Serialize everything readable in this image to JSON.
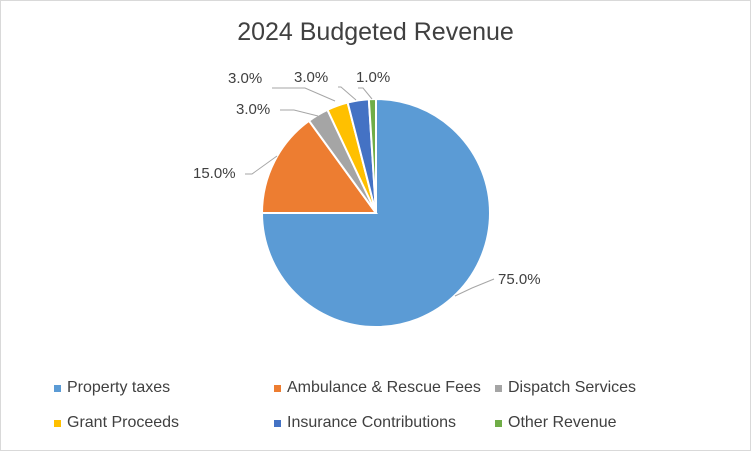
{
  "chart_data": {
    "type": "pie",
    "title": "2024 Budgeted Revenue",
    "categories": [
      "Property taxes",
      "Ambulance & Rescue Fees",
      "Dispatch Services",
      "Grant Proceeds",
      "Insurance Contributions",
      "Other Revenue"
    ],
    "values": [
      75.0,
      15.0,
      3.0,
      3.0,
      3.0,
      1.0
    ],
    "data_labels": [
      "75.0%",
      "15.0%",
      "3.0%",
      "3.0%",
      "3.0%",
      "1.0%"
    ],
    "colors": [
      "#5b9bd5",
      "#ed7d31",
      "#a5a5a5",
      "#ffc000",
      "#4472c4",
      "#70ad47"
    ],
    "legend_position": "bottom",
    "start_angle_deg": 0,
    "direction": "clockwise"
  }
}
